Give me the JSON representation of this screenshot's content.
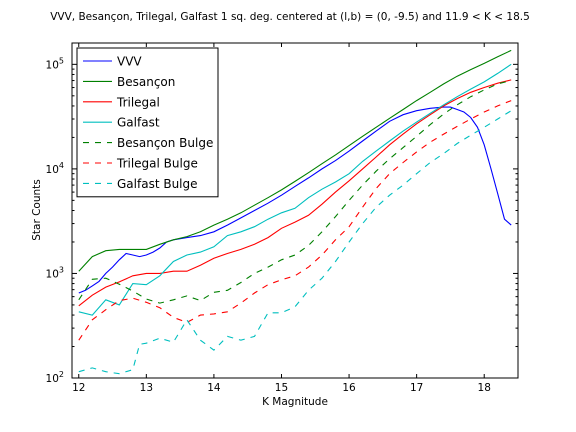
{
  "chart_data": {
    "type": "line",
    "title": "VVV, Besançon, Trilegal, Galfast 1 sq. deg. centered at (l,b) = (0, -9.5) and 11.9 < K < 18.5",
    "xlabel": "K Magnitude",
    "ylabel": "Star Counts",
    "xlim": [
      11.9,
      18.5
    ],
    "ylim": [
      100,
      160000
    ],
    "yscale": "log",
    "grid": false,
    "legend_position": "top-left",
    "x_ticks": [
      "12",
      "13",
      "14",
      "15",
      "16",
      "17",
      "18"
    ],
    "y_ticks": [
      {
        "value": 100,
        "base": "10",
        "exp": "2"
      },
      {
        "value": 1000,
        "base": "10",
        "exp": "3"
      },
      {
        "value": 10000,
        "base": "10",
        "exp": "4"
      },
      {
        "value": 100000,
        "base": "10",
        "exp": "5"
      }
    ],
    "series": [
      {
        "name": "VVV",
        "color": "#0000ff",
        "dash": "solid",
        "x": [
          12.0,
          12.1,
          12.2,
          12.3,
          12.4,
          12.5,
          12.6,
          12.7,
          12.8,
          12.9,
          13.0,
          13.1,
          13.2,
          13.3,
          13.4,
          13.6,
          13.8,
          14.0,
          14.2,
          14.4,
          14.6,
          14.8,
          15.0,
          15.2,
          15.4,
          15.6,
          15.8,
          16.0,
          16.2,
          16.4,
          16.6,
          16.8,
          17.0,
          17.2,
          17.4,
          17.5,
          17.6,
          17.7,
          17.8,
          17.9,
          18.0,
          18.1,
          18.2,
          18.3,
          18.4
        ],
        "y": [
          650,
          690,
          760,
          840,
          1000,
          1150,
          1350,
          1550,
          1500,
          1450,
          1500,
          1600,
          1750,
          2000,
          2100,
          2200,
          2300,
          2500,
          2900,
          3400,
          4000,
          4700,
          5600,
          6800,
          8200,
          10000,
          12000,
          14800,
          18500,
          23000,
          28500,
          33000,
          36000,
          38000,
          39000,
          39000,
          37000,
          35000,
          31000,
          25000,
          17000,
          10000,
          5800,
          3300,
          2900
        ]
      },
      {
        "name": "Besançon",
        "color": "#008000",
        "dash": "solid",
        "x": [
          12.0,
          12.2,
          12.4,
          12.6,
          12.8,
          13.0,
          13.2,
          13.4,
          13.6,
          13.8,
          14.0,
          14.2,
          14.4,
          14.6,
          14.8,
          15.0,
          15.2,
          15.4,
          15.6,
          15.8,
          16.0,
          16.2,
          16.4,
          16.6,
          16.8,
          17.0,
          17.2,
          17.4,
          17.6,
          17.8,
          18.0,
          18.2,
          18.4
        ],
        "y": [
          1050,
          1450,
          1650,
          1700,
          1700,
          1700,
          1900,
          2100,
          2250,
          2500,
          2900,
          3300,
          3800,
          4500,
          5300,
          6300,
          7600,
          9200,
          11200,
          13600,
          16700,
          20500,
          25000,
          30500,
          37000,
          45000,
          54000,
          65000,
          77000,
          89000,
          102000,
          118000,
          136000
        ]
      },
      {
        "name": "Trilegal",
        "color": "#ff0000",
        "dash": "solid",
        "x": [
          12.0,
          12.2,
          12.4,
          12.6,
          12.8,
          13.0,
          13.2,
          13.4,
          13.6,
          13.8,
          14.0,
          14.2,
          14.4,
          14.6,
          14.8,
          15.0,
          15.2,
          15.4,
          15.6,
          15.8,
          16.0,
          16.2,
          16.4,
          16.6,
          16.8,
          17.0,
          17.2,
          17.4,
          17.6,
          17.8,
          18.0,
          18.2,
          18.4
        ],
        "y": [
          490,
          620,
          740,
          830,
          950,
          1000,
          1000,
          1050,
          1050,
          1200,
          1400,
          1550,
          1700,
          1900,
          2200,
          2700,
          3100,
          3600,
          4600,
          6000,
          7700,
          10000,
          13000,
          17000,
          21500,
          27000,
          33000,
          40000,
          47000,
          54000,
          60000,
          66000,
          71000
        ]
      },
      {
        "name": "Galfast",
        "color": "#00bfbf",
        "dash": "solid",
        "x": [
          12.0,
          12.2,
          12.4,
          12.6,
          12.8,
          13.0,
          13.2,
          13.4,
          13.6,
          13.8,
          14.0,
          14.2,
          14.4,
          14.6,
          14.8,
          15.0,
          15.2,
          15.4,
          15.6,
          15.8,
          16.0,
          16.2,
          16.4,
          16.6,
          16.8,
          17.0,
          17.2,
          17.4,
          17.6,
          17.8,
          18.0,
          18.2,
          18.4
        ],
        "y": [
          430,
          400,
          560,
          500,
          800,
          780,
          950,
          1300,
          1500,
          1600,
          1800,
          2300,
          2500,
          2800,
          3300,
          3800,
          4200,
          5300,
          6400,
          7500,
          9000,
          11800,
          14800,
          18500,
          23000,
          28000,
          34000,
          41000,
          49000,
          58000,
          68000,
          82000,
          100000
        ]
      },
      {
        "name": "Besançon Bulge",
        "color": "#008000",
        "dash": "dashed",
        "x": [
          12.0,
          12.2,
          12.4,
          12.6,
          12.8,
          13.0,
          13.2,
          13.4,
          13.6,
          13.8,
          14.0,
          14.2,
          14.4,
          14.6,
          14.8,
          15.0,
          15.2,
          15.4,
          15.6,
          15.8,
          16.0,
          16.2,
          16.4,
          16.6,
          16.8,
          17.0,
          17.2,
          17.4,
          17.6,
          17.8,
          18.0,
          18.2,
          18.4
        ],
        "y": [
          560,
          880,
          900,
          790,
          680,
          570,
          520,
          560,
          610,
          550,
          660,
          690,
          820,
          1000,
          1150,
          1350,
          1500,
          1850,
          2500,
          3500,
          5000,
          7000,
          9500,
          12500,
          16000,
          20500,
          26500,
          33500,
          41000,
          49000,
          57000,
          65000,
          70000
        ]
      },
      {
        "name": "Trilegal Bulge",
        "color": "#ff0000",
        "dash": "dashed",
        "x": [
          12.0,
          12.2,
          12.4,
          12.6,
          12.8,
          13.0,
          13.2,
          13.4,
          13.6,
          13.8,
          14.0,
          14.2,
          14.4,
          14.6,
          14.8,
          15.0,
          15.2,
          15.4,
          15.6,
          15.8,
          16.0,
          16.2,
          16.4,
          16.6,
          16.8,
          17.0,
          17.2,
          17.4,
          17.6,
          17.8,
          18.0,
          18.2,
          18.4
        ],
        "y": [
          230,
          360,
          450,
          550,
          580,
          530,
          470,
          380,
          340,
          400,
          410,
          430,
          520,
          650,
          780,
          870,
          950,
          1150,
          1500,
          2100,
          2800,
          4300,
          6500,
          9000,
          11500,
          14500,
          18000,
          21500,
          25500,
          30000,
          35000,
          40000,
          45000
        ]
      },
      {
        "name": "Galfast Bulge",
        "color": "#00bfbf",
        "dash": "dashed",
        "x": [
          12.0,
          12.2,
          12.4,
          12.6,
          12.8,
          12.9,
          13.0,
          13.2,
          13.4,
          13.6,
          13.8,
          14.0,
          14.2,
          14.4,
          14.6,
          14.8,
          15.0,
          15.2,
          15.4,
          15.6,
          15.8,
          16.0,
          16.2,
          16.4,
          16.6,
          16.8,
          17.0,
          17.2,
          17.4,
          17.6,
          17.8,
          18.0,
          18.2,
          18.4
        ],
        "y": [
          115,
          125,
          115,
          110,
          120,
          210,
          215,
          240,
          220,
          360,
          230,
          185,
          250,
          230,
          250,
          420,
          420,
          480,
          690,
          900,
          1300,
          2000,
          3000,
          4300,
          5600,
          7000,
          9000,
          11500,
          14000,
          17500,
          21000,
          25000,
          30000,
          36000
        ]
      }
    ]
  }
}
